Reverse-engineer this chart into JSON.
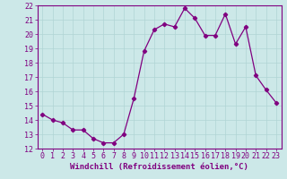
{
  "x": [
    0,
    1,
    2,
    3,
    4,
    5,
    6,
    7,
    8,
    9,
    10,
    11,
    12,
    13,
    14,
    15,
    16,
    17,
    18,
    19,
    20,
    21,
    22,
    23
  ],
  "y": [
    14.4,
    14.0,
    13.8,
    13.3,
    13.3,
    12.7,
    12.4,
    12.4,
    13.0,
    15.5,
    18.8,
    20.3,
    20.7,
    20.5,
    21.8,
    21.1,
    19.9,
    19.9,
    21.4,
    19.3,
    20.5,
    17.1,
    16.1,
    15.2
  ],
  "line_color": "#800080",
  "marker": "D",
  "marker_size": 2.2,
  "bg_color": "#cce8e8",
  "grid_color": "#b0d4d4",
  "ylim": [
    12,
    22
  ],
  "xlim": [
    -0.5,
    23.5
  ],
  "yticks": [
    12,
    13,
    14,
    15,
    16,
    17,
    18,
    19,
    20,
    21,
    22
  ],
  "xticks": [
    0,
    1,
    2,
    3,
    4,
    5,
    6,
    7,
    8,
    9,
    10,
    11,
    12,
    13,
    14,
    15,
    16,
    17,
    18,
    19,
    20,
    21,
    22,
    23
  ],
  "xlabel": "Windchill (Refroidissement éolien,°C)",
  "xlabel_fontsize": 6.5,
  "tick_fontsize": 6.0,
  "line_width": 0.9
}
